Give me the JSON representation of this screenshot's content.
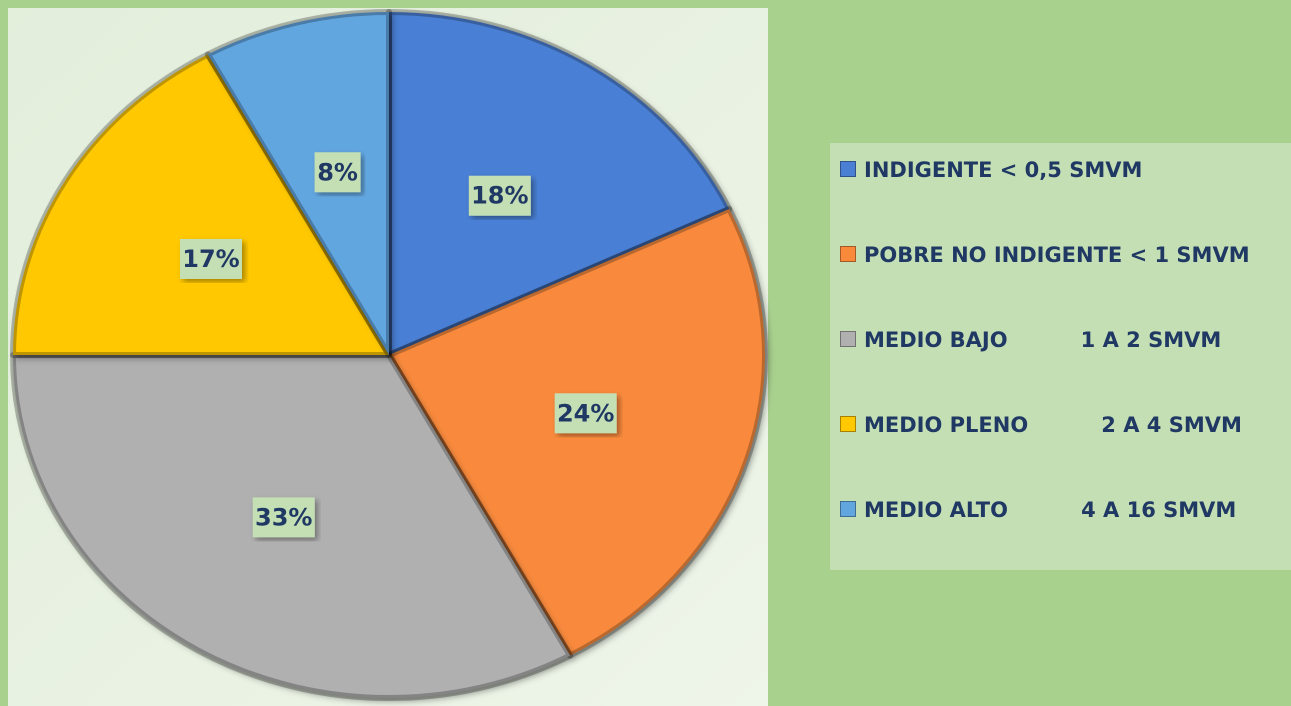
{
  "chart_data": {
    "type": "pie",
    "categories": [
      "INDIGENTE < 0,5 SMVM",
      "POBRE NO INDIGENTE < 1 SMVM",
      "MEDIO BAJO          1 A 2 SMVM",
      "MEDIO PLENO          2 A 4 SMVM",
      "MEDIO ALTO          4 A 16 SMVM"
    ],
    "values": [
      18,
      24,
      33,
      17,
      8
    ],
    "value_labels": [
      "18%",
      "24%",
      "33%",
      "17%",
      "8%"
    ],
    "colors": [
      "#4a7fd4",
      "#f98a3c",
      "#b0b0b0",
      "#ffc800",
      "#62a6e0"
    ],
    "legend": "right"
  }
}
